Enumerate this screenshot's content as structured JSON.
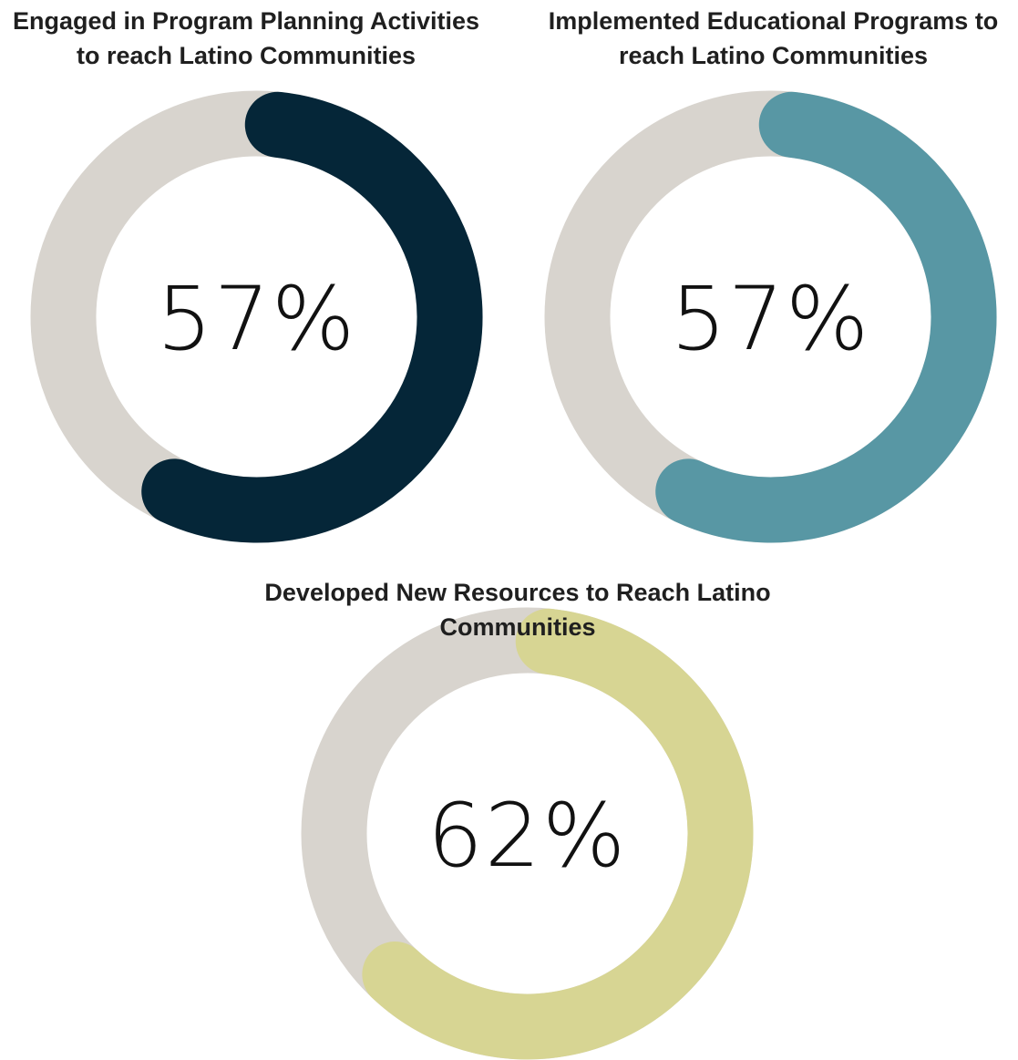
{
  "chart_data": [
    {
      "type": "pie",
      "title": "Engaged in Program Planning Activities to reach Latino Communities",
      "value": 57,
      "value_label": "57%",
      "max": 100,
      "color": "#052638",
      "track_color": "#d8d4ce"
    },
    {
      "type": "pie",
      "title": "Implemented Educational Programs to reach Latino Communities",
      "value": 57,
      "value_label": "57%",
      "max": 100,
      "color": "#5897a4",
      "track_color": "#d8d4ce"
    },
    {
      "type": "pie",
      "title": "Developed New Resources to Reach Latino Communities",
      "value": 62,
      "value_label": "62%",
      "max": 100,
      "color": "#d7d593",
      "track_color": "#d8d4ce"
    }
  ]
}
